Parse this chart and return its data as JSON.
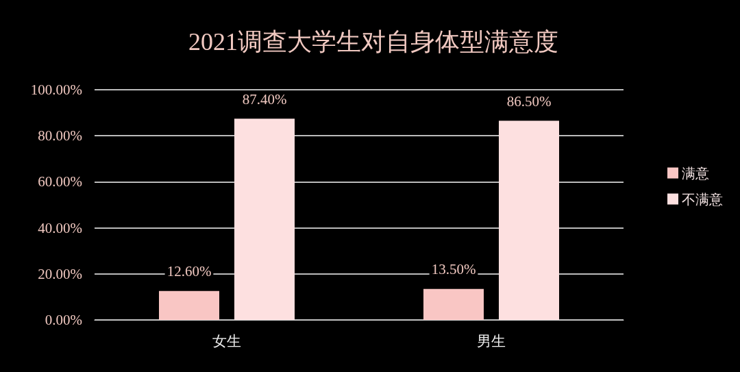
{
  "chart_data": {
    "type": "bar",
    "title": "2021调查大学生对自身体型满意度",
    "categories": [
      "女生",
      "男生"
    ],
    "series": [
      {
        "name": "满意",
        "color": "#f9c6c4",
        "values": [
          12.6,
          13.5
        ],
        "value_labels": [
          "12.60%",
          "13.50%"
        ]
      },
      {
        "name": "不满意",
        "color": "#fde0e0",
        "values": [
          87.4,
          86.5
        ],
        "value_labels": [
          "87.40%",
          "86.50%"
        ]
      }
    ],
    "ylim": [
      0,
      100
    ],
    "yticks": [
      {
        "value": 0,
        "label": "0.00%"
      },
      {
        "value": 20,
        "label": "20.00%"
      },
      {
        "value": 40,
        "label": "40.00%"
      },
      {
        "value": 60,
        "label": "60.00%"
      },
      {
        "value": 80,
        "label": "80.00%"
      },
      {
        "value": 100,
        "label": "100.00%"
      }
    ],
    "grid": "y",
    "legend": "right"
  }
}
